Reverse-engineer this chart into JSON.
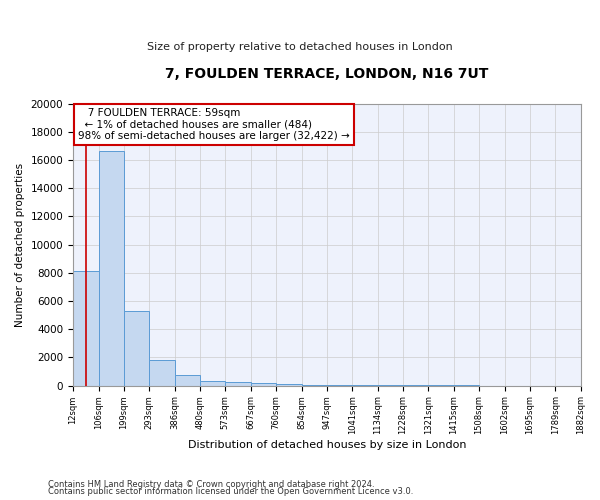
{
  "title": "7, FOULDEN TERRACE, LONDON, N16 7UT",
  "subtitle": "Size of property relative to detached houses in London",
  "xlabel": "Distribution of detached houses by size in London",
  "ylabel": "Number of detached properties",
  "footnote1": "Contains HM Land Registry data © Crown copyright and database right 2024.",
  "footnote2": "Contains public sector information licensed under the Open Government Licence v3.0.",
  "annotation_title": "7 FOULDEN TERRACE: 59sqm",
  "annotation_line2": "← 1% of detached houses are smaller (484)",
  "annotation_line3": "98% of semi-detached houses are larger (32,422) →",
  "property_size_sqm": 59,
  "bar_edges": [
    12,
    106,
    199,
    293,
    386,
    480,
    573,
    667,
    760,
    854,
    947,
    1041,
    1134,
    1228,
    1321,
    1415,
    1508,
    1602,
    1695,
    1789,
    1882
  ],
  "bar_heights": [
    8100,
    16600,
    5300,
    1850,
    720,
    340,
    220,
    150,
    110,
    60,
    35,
    22,
    15,
    12,
    10,
    8,
    6,
    5,
    4,
    3
  ],
  "bar_color": "#c5d8f0",
  "bar_edge_color": "#5b9bd5",
  "vline_color": "#cc0000",
  "annotation_box_edge_color": "#cc0000",
  "annotation_box_face_color": "#ffffff",
  "ylim": [
    0,
    20000
  ],
  "yticks": [
    0,
    2000,
    4000,
    6000,
    8000,
    10000,
    12000,
    14000,
    16000,
    18000,
    20000
  ],
  "grid_color": "#cccccc",
  "background_color": "#eef2fc"
}
